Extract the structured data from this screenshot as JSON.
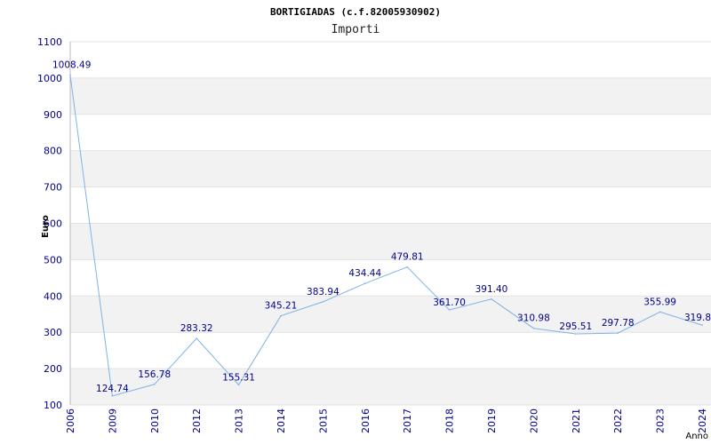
{
  "chart_data": {
    "type": "line",
    "title": "BORTIGIADAS (c.f.82005930902)",
    "subtitle": "Importi",
    "ylabel": "Euro",
    "xlabel": "Anno",
    "ylim": [
      100,
      1100
    ],
    "yticks": [
      100,
      200,
      300,
      400,
      500,
      600,
      700,
      800,
      900,
      1000,
      1100
    ],
    "grid": true,
    "categories": [
      "2006",
      "2009",
      "2010",
      "2012",
      "2013",
      "2014",
      "2015",
      "2016",
      "2017",
      "2018",
      "2019",
      "2020",
      "2021",
      "2022",
      "2023",
      "2024"
    ],
    "values": [
      1008.49,
      124.74,
      156.78,
      283.32,
      155.31,
      345.21,
      383.94,
      434.44,
      479.81,
      361.7,
      391.4,
      310.98,
      295.51,
      297.78,
      355.99,
      319.8
    ],
    "value_labels": [
      "1008.49",
      "124.74",
      "156.78",
      "283.32",
      "155.31",
      "345.21",
      "383.94",
      "434.44",
      "479.81",
      "361.70",
      "391.40",
      "310.98",
      "295.51",
      "297.78",
      "355.99",
      "319.8"
    ],
    "colors": {
      "line": "#7fb2e5",
      "band": "#f2f2f2",
      "axis": "#bbbbbb",
      "text": "#00008b"
    }
  }
}
